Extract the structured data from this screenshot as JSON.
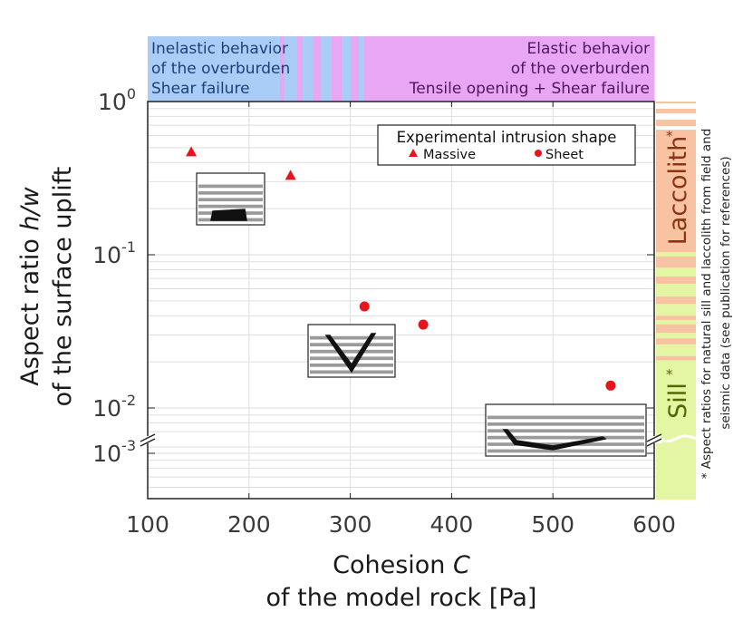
{
  "chart_data": {
    "type": "scatter",
    "xlabel_line1": "Cohesion ",
    "xlabel_var": "C",
    "xlabel_line2": "of the model rock [Pa]",
    "ylabel_line1": "Aspect ratio ",
    "ylabel_var": "h/w",
    "ylabel_line2": "of the surface uplift",
    "xlim": [
      100,
      600
    ],
    "x_ticks": [
      "100",
      "200",
      "300",
      "400",
      "500",
      "600"
    ],
    "x_tick_values": [
      100,
      200,
      300,
      400,
      500,
      600
    ],
    "y_scale": "log",
    "y_axis_broken": true,
    "ylim_upper": [
      0.006,
      1
    ],
    "ylim_lower": [
      0.0005,
      0.00123
    ],
    "y_ticks": [
      {
        "value": 1,
        "base": "10",
        "exp": "0"
      },
      {
        "value": 0.1,
        "base": "10",
        "exp": "-1"
      },
      {
        "value": 0.01,
        "base": "10",
        "exp": "-2"
      },
      {
        "value": 0.001,
        "base": "10",
        "exp": "-3"
      }
    ],
    "grid": true,
    "legend": {
      "title": "Experimental intrusion shape",
      "placement": "top-right",
      "entries": [
        {
          "label": "Massive",
          "marker": "triangle"
        },
        {
          "label": "Sheet",
          "marker": "circle"
        }
      ]
    },
    "series": [
      {
        "name": "Massive",
        "marker": "triangle",
        "color": "#e8141c",
        "points": [
          {
            "x": 143,
            "y": 0.47
          },
          {
            "x": 241,
            "y": 0.33
          }
        ]
      },
      {
        "name": "Sheet",
        "marker": "circle",
        "color": "#e8141c",
        "points": [
          {
            "x": 314,
            "y": 0.046
          },
          {
            "x": 372,
            "y": 0.035
          },
          {
            "x": 557,
            "y": 0.014
          }
        ]
      }
    ],
    "behavior_band": {
      "inelastic": {
        "lines": [
          "Inelastic behavior",
          "of the overburden",
          "Shear failure"
        ],
        "color": "#a9cdf7",
        "text_color": "#1f3f7a"
      },
      "elastic": {
        "lines": [
          "Elastic behavior",
          "of the overburden",
          "Tensile opening + Shear failure"
        ],
        "color": "#e8a6f5",
        "text_color": "#4e1760"
      },
      "segments": [
        {
          "from": 100,
          "to": 230.6,
          "type": "inelastic"
        },
        {
          "from": 230.6,
          "to": 235,
          "type": "elastic"
        },
        {
          "from": 235,
          "to": 247.6,
          "type": "inelastic"
        },
        {
          "from": 247.6,
          "to": 253,
          "type": "elastic"
        },
        {
          "from": 253,
          "to": 263,
          "type": "inelastic"
        },
        {
          "from": 263,
          "to": 271,
          "type": "elastic"
        },
        {
          "from": 271,
          "to": 281.6,
          "type": "inelastic"
        },
        {
          "from": 281.6,
          "to": 291.4,
          "type": "elastic"
        },
        {
          "from": 291.4,
          "to": 300.4,
          "type": "inelastic"
        },
        {
          "from": 300.4,
          "to": 308.4,
          "type": "elastic"
        },
        {
          "from": 308.4,
          "to": 313.8,
          "type": "inelastic"
        },
        {
          "from": 313.8,
          "to": 600,
          "type": "elastic"
        }
      ]
    },
    "natural_ranges": {
      "laccolith": {
        "label": "Laccolith",
        "star": "*",
        "color": "#f8c3a3",
        "text_color": "#8a3413",
        "ranges": [
          [
            0.973,
            1.0
          ],
          [
            0.838,
            0.897
          ],
          [
            0.692,
            0.761
          ],
          [
            0.104,
            0.655
          ],
          [
            0.0824,
            0.0975
          ],
          [
            0.0647,
            0.0721
          ],
          [
            0.0478,
            0.0534
          ],
          [
            0.0375,
            0.04
          ],
          [
            0.031,
            0.0351
          ],
          [
            0.026,
            0.0285
          ],
          [
            0.0205,
            0.0218
          ]
        ]
      },
      "sill": {
        "label": "Sill",
        "star": "*",
        "color": "#e4f5a3",
        "text_color": "#4f6a00",
        "range": [
          0.0005,
          0.104
        ]
      },
      "note_line1": "* Aspect ratios for natural sill and laccolith from field and",
      "note_line2": "seismic data (see publication for references)"
    }
  }
}
